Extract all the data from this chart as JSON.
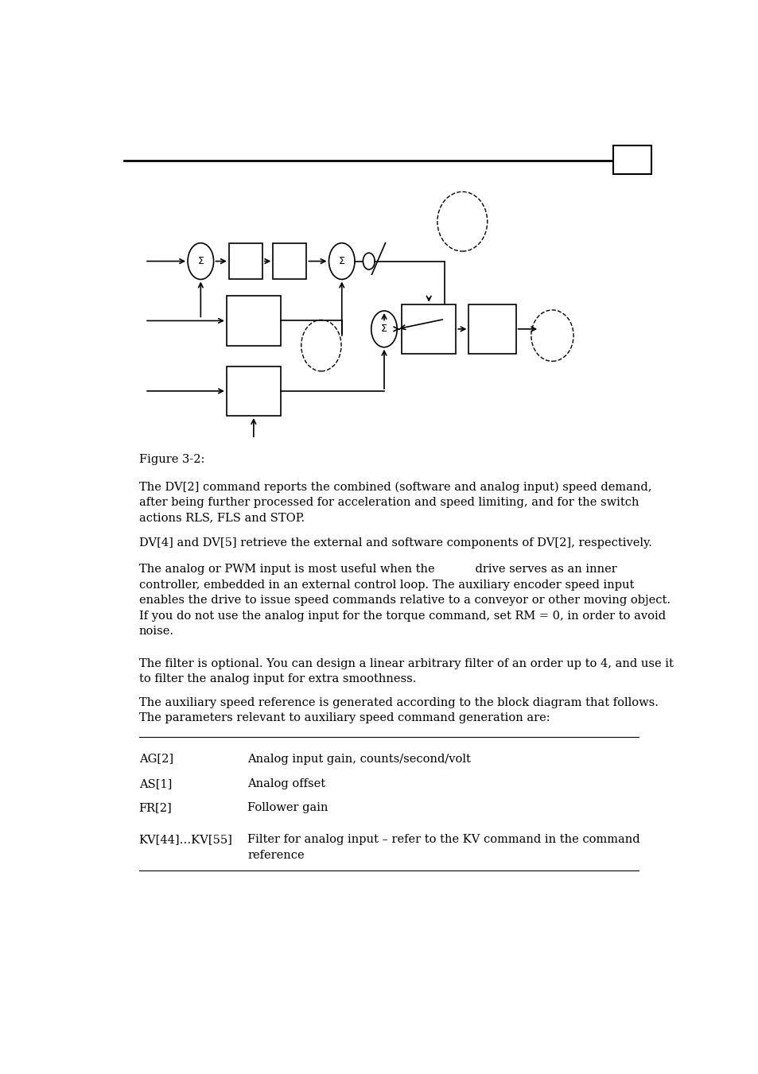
{
  "title_line": "Figure 3-2:",
  "para1": "The DV[2] command reports the combined (software and analog input) speed demand,\nafter being further processed for acceleration and speed limiting, and for the switch\nactions RLS, FLS and STOP.",
  "para2": "DV[4] and DV[5] retrieve the external and software components of DV[2], respectively.",
  "para3": "The analog or PWM input is most useful when the           drive serves as an inner\ncontroller, embedded in an external control loop. The auxiliary encoder speed input\nenables the drive to issue speed commands relative to a conveyor or other moving object.\nIf you do not use the analog input for the torque command, set RM = 0, in order to avoid\nnoise.",
  "para4": "The filter is optional. You can design a linear arbitrary filter of an order up to 4, and use it\nto filter the analog input for extra smoothness.",
  "para5": "The auxiliary speed reference is generated according to the block diagram that follows.\nThe parameters relevant to auxiliary speed command generation are:",
  "table_rows": [
    [
      "AG[2]",
      "Analog input gain, counts/second/volt"
    ],
    [
      "AS[1]",
      "Analog offset"
    ],
    [
      "FR[2]",
      "Follower gain"
    ],
    [
      "KV[44]…KV[55]",
      "Filter for analog input – refer to the KV command in the command\nreference"
    ]
  ],
  "page_bg": "#ffffff",
  "text_color": "#000000"
}
